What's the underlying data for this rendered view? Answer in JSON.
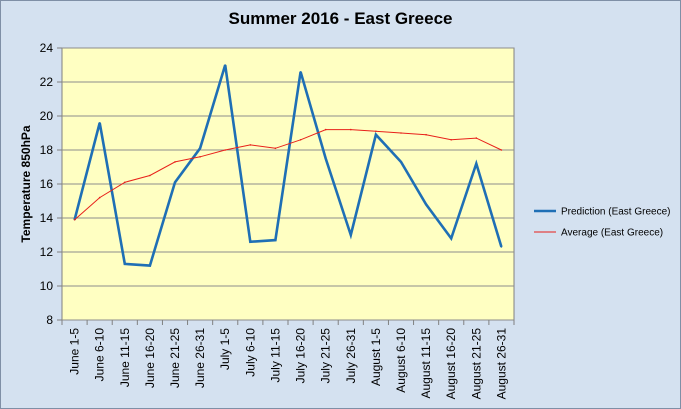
{
  "chart_data": {
    "type": "line",
    "title": "Summer 2016 - East Greece",
    "xlabel": "",
    "ylabel": "Temperature 850hPa",
    "ylim": [
      8,
      24
    ],
    "yticks": [
      8,
      10,
      12,
      14,
      16,
      18,
      20,
      22,
      24
    ],
    "grid": "horizontal",
    "legend_position": "right",
    "categories": [
      "June 1-5",
      "June 6-10",
      "June 11-15",
      "June 16-20",
      "June 21-25",
      "June 26-31",
      "July 1-5",
      "July 6-10",
      "July 11-15",
      "July 16-20",
      "July 21-25",
      "July 26-31",
      "August 1-5",
      "August 6-10",
      "August 11-15",
      "August 16-20",
      "August 21-25",
      "August 26-31"
    ],
    "series": [
      {
        "name": "Prediction (East Greece)",
        "color": "#1f6fb5",
        "values": [
          13.9,
          19.6,
          11.3,
          11.2,
          16.1,
          18.1,
          23.0,
          12.6,
          12.7,
          22.6,
          17.5,
          13.0,
          18.9,
          17.3,
          14.8,
          12.8,
          17.2,
          12.3
        ]
      },
      {
        "name": "Average (East Greece)",
        "color": "#e8201a",
        "values": [
          13.9,
          15.2,
          16.1,
          16.5,
          17.3,
          17.6,
          18.0,
          18.3,
          18.1,
          18.6,
          19.2,
          19.2,
          19.1,
          19.0,
          18.9,
          18.6,
          18.7,
          18.0
        ]
      }
    ]
  },
  "colors": {
    "background": "#d4e1f0",
    "plot_area": "#ffffc2"
  }
}
